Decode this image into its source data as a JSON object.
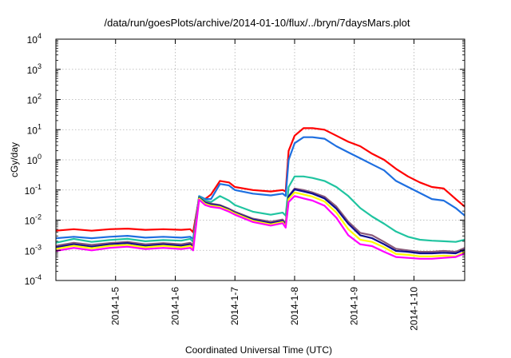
{
  "chart_data": {
    "type": "line",
    "title": "/data/run/goesPlots/archive/2014-01-10/flux/../bryn/7daysMars.plot",
    "xlabel": "Coordinated Universal Time (UTC)",
    "ylabel": "cGy/day",
    "yscale": "log",
    "ylim_exponent": [
      -4,
      4
    ],
    "y_ticks": [
      {
        "base": "10",
        "exp": "-4"
      },
      {
        "base": "10",
        "exp": "-3"
      },
      {
        "base": "10",
        "exp": "-2"
      },
      {
        "base": "10",
        "exp": "-1"
      },
      {
        "base": "10",
        "exp": "0"
      },
      {
        "base": "10",
        "exp": "1"
      },
      {
        "base": "10",
        "exp": "2"
      },
      {
        "base": "10",
        "exp": "3"
      },
      {
        "base": "10",
        "exp": "4"
      }
    ],
    "xlim_days": [
      0,
      6.85
    ],
    "x_ticks": [
      {
        "label": "2014-1-5",
        "day": 1
      },
      {
        "label": "2014-1-6",
        "day": 2
      },
      {
        "label": "2014-1-7",
        "day": 3
      },
      {
        "label": "2014-1-8",
        "day": 4
      },
      {
        "label": "2014-1-9",
        "day": 5
      },
      {
        "label": "2014-1-10",
        "day": 6
      }
    ],
    "grid": true,
    "series": [
      {
        "color": "#ff0000",
        "points": [
          [
            0,
            -2.35
          ],
          [
            0.3,
            -2.3
          ],
          [
            0.6,
            -2.35
          ],
          [
            0.9,
            -2.3
          ],
          [
            1.2,
            -2.28
          ],
          [
            1.5,
            -2.32
          ],
          [
            1.8,
            -2.3
          ],
          [
            2.1,
            -2.32
          ],
          [
            2.25,
            -2.3
          ],
          [
            2.3,
            -2.4
          ],
          [
            2.4,
            -1.25
          ],
          [
            2.5,
            -1.3
          ],
          [
            2.6,
            -1.15
          ],
          [
            2.75,
            -0.7
          ],
          [
            2.9,
            -0.75
          ],
          [
            3.0,
            -0.9
          ],
          [
            3.3,
            -1.0
          ],
          [
            3.6,
            -1.05
          ],
          [
            3.8,
            -1.0
          ],
          [
            3.85,
            -1.05
          ],
          [
            3.9,
            0.3
          ],
          [
            4.0,
            0.8
          ],
          [
            4.15,
            1.05
          ],
          [
            4.3,
            1.05
          ],
          [
            4.5,
            1.0
          ],
          [
            4.7,
            0.8
          ],
          [
            4.9,
            0.6
          ],
          [
            5.1,
            0.45
          ],
          [
            5.3,
            0.2
          ],
          [
            5.5,
            0.0
          ],
          [
            5.7,
            -0.3
          ],
          [
            5.9,
            -0.55
          ],
          [
            6.1,
            -0.75
          ],
          [
            6.3,
            -0.9
          ],
          [
            6.5,
            -0.95
          ],
          [
            6.7,
            -1.3
          ],
          [
            6.85,
            -1.55
          ]
        ]
      },
      {
        "color": "#1e6fe0",
        "points": [
          [
            0,
            -2.6
          ],
          [
            0.3,
            -2.55
          ],
          [
            0.6,
            -2.6
          ],
          [
            0.9,
            -2.55
          ],
          [
            1.2,
            -2.52
          ],
          [
            1.5,
            -2.58
          ],
          [
            1.8,
            -2.55
          ],
          [
            2.1,
            -2.58
          ],
          [
            2.25,
            -2.55
          ],
          [
            2.3,
            -2.62
          ],
          [
            2.4,
            -1.2
          ],
          [
            2.5,
            -1.3
          ],
          [
            2.6,
            -1.3
          ],
          [
            2.75,
            -0.8
          ],
          [
            2.9,
            -0.85
          ],
          [
            3.0,
            -1.0
          ],
          [
            3.3,
            -1.12
          ],
          [
            3.6,
            -1.18
          ],
          [
            3.8,
            -1.12
          ],
          [
            3.85,
            -1.2
          ],
          [
            3.9,
            0.0
          ],
          [
            4.0,
            0.55
          ],
          [
            4.15,
            0.75
          ],
          [
            4.3,
            0.75
          ],
          [
            4.5,
            0.7
          ],
          [
            4.7,
            0.45
          ],
          [
            4.9,
            0.25
          ],
          [
            5.1,
            0.05
          ],
          [
            5.3,
            -0.15
          ],
          [
            5.5,
            -0.35
          ],
          [
            5.7,
            -0.7
          ],
          [
            5.9,
            -0.9
          ],
          [
            6.1,
            -1.1
          ],
          [
            6.3,
            -1.3
          ],
          [
            6.5,
            -1.35
          ],
          [
            6.7,
            -1.6
          ],
          [
            6.85,
            -1.85
          ]
        ]
      },
      {
        "color": "#20c4a0",
        "points": [
          [
            0,
            -2.75
          ],
          [
            0.3,
            -2.62
          ],
          [
            0.6,
            -2.72
          ],
          [
            0.9,
            -2.66
          ],
          [
            1.2,
            -2.62
          ],
          [
            1.5,
            -2.7
          ],
          [
            1.8,
            -2.66
          ],
          [
            2.1,
            -2.68
          ],
          [
            2.25,
            -2.62
          ],
          [
            2.3,
            -2.72
          ],
          [
            2.4,
            -1.22
          ],
          [
            2.5,
            -1.35
          ],
          [
            2.6,
            -1.4
          ],
          [
            2.75,
            -1.2
          ],
          [
            2.9,
            -1.35
          ],
          [
            3.0,
            -1.5
          ],
          [
            3.3,
            -1.72
          ],
          [
            3.6,
            -1.82
          ],
          [
            3.8,
            -1.75
          ],
          [
            3.85,
            -1.85
          ],
          [
            3.9,
            -0.9
          ],
          [
            4.0,
            -0.55
          ],
          [
            4.15,
            -0.55
          ],
          [
            4.3,
            -0.6
          ],
          [
            4.5,
            -0.7
          ],
          [
            4.7,
            -0.9
          ],
          [
            4.9,
            -1.2
          ],
          [
            5.1,
            -1.6
          ],
          [
            5.3,
            -1.88
          ],
          [
            5.5,
            -2.12
          ],
          [
            5.7,
            -2.38
          ],
          [
            5.9,
            -2.55
          ],
          [
            6.1,
            -2.65
          ],
          [
            6.3,
            -2.68
          ],
          [
            6.5,
            -2.7
          ],
          [
            6.7,
            -2.72
          ],
          [
            6.85,
            -2.65
          ]
        ]
      },
      {
        "color": "#8a5a7a",
        "points": [
          [
            0,
            -2.85
          ],
          [
            0.3,
            -2.75
          ],
          [
            0.6,
            -2.82
          ],
          [
            0.9,
            -2.76
          ],
          [
            1.2,
            -2.72
          ],
          [
            1.5,
            -2.8
          ],
          [
            1.8,
            -2.76
          ],
          [
            2.1,
            -2.8
          ],
          [
            2.25,
            -2.75
          ],
          [
            2.3,
            -2.82
          ],
          [
            2.4,
            -1.25
          ],
          [
            2.5,
            -1.4
          ],
          [
            2.6,
            -1.45
          ],
          [
            2.75,
            -1.5
          ],
          [
            2.9,
            -1.62
          ],
          [
            3.0,
            -1.72
          ],
          [
            3.3,
            -1.95
          ],
          [
            3.6,
            -2.05
          ],
          [
            3.8,
            -1.98
          ],
          [
            3.85,
            -2.1
          ],
          [
            3.9,
            -1.2
          ],
          [
            4.0,
            -0.95
          ],
          [
            4.15,
            -1.0
          ],
          [
            4.3,
            -1.08
          ],
          [
            4.5,
            -1.22
          ],
          [
            4.7,
            -1.55
          ],
          [
            4.9,
            -2.05
          ],
          [
            5.1,
            -2.42
          ],
          [
            5.3,
            -2.5
          ],
          [
            5.5,
            -2.72
          ],
          [
            5.7,
            -2.95
          ],
          [
            5.9,
            -3.0
          ],
          [
            6.1,
            -3.05
          ],
          [
            6.3,
            -3.05
          ],
          [
            6.5,
            -3.02
          ],
          [
            6.7,
            -3.05
          ],
          [
            6.85,
            -2.92
          ]
        ]
      },
      {
        "color": "#101090",
        "points": [
          [
            0,
            -2.9
          ],
          [
            0.3,
            -2.8
          ],
          [
            0.6,
            -2.88
          ],
          [
            0.9,
            -2.8
          ],
          [
            1.2,
            -2.76
          ],
          [
            1.5,
            -2.85
          ],
          [
            1.8,
            -2.8
          ],
          [
            2.1,
            -2.85
          ],
          [
            2.25,
            -2.8
          ],
          [
            2.3,
            -2.88
          ],
          [
            2.4,
            -1.25
          ],
          [
            2.5,
            -1.42
          ],
          [
            2.6,
            -1.48
          ],
          [
            2.75,
            -1.52
          ],
          [
            2.9,
            -1.65
          ],
          [
            3.0,
            -1.75
          ],
          [
            3.3,
            -1.98
          ],
          [
            3.6,
            -2.1
          ],
          [
            3.8,
            -2.02
          ],
          [
            3.85,
            -2.15
          ],
          [
            3.9,
            -1.22
          ],
          [
            4.0,
            -0.98
          ],
          [
            4.15,
            -1.05
          ],
          [
            4.3,
            -1.12
          ],
          [
            4.5,
            -1.28
          ],
          [
            4.7,
            -1.62
          ],
          [
            4.9,
            -2.12
          ],
          [
            5.1,
            -2.5
          ],
          [
            5.3,
            -2.6
          ],
          [
            5.5,
            -2.8
          ],
          [
            5.7,
            -3.02
          ],
          [
            5.9,
            -3.05
          ],
          [
            6.1,
            -3.1
          ],
          [
            6.3,
            -3.1
          ],
          [
            6.5,
            -3.08
          ],
          [
            6.7,
            -3.1
          ],
          [
            6.85,
            -2.98
          ]
        ]
      },
      {
        "color": "#ffff00",
        "points": [
          [
            0,
            -2.95
          ],
          [
            0.3,
            -2.85
          ],
          [
            0.6,
            -2.93
          ],
          [
            0.9,
            -2.85
          ],
          [
            1.2,
            -2.82
          ],
          [
            1.5,
            -2.9
          ],
          [
            1.8,
            -2.85
          ],
          [
            2.1,
            -2.9
          ],
          [
            2.25,
            -2.85
          ],
          [
            2.3,
            -2.93
          ],
          [
            2.4,
            -1.28
          ],
          [
            2.5,
            -1.46
          ],
          [
            2.6,
            -1.52
          ],
          [
            2.75,
            -1.56
          ],
          [
            2.9,
            -1.68
          ],
          [
            3.0,
            -1.78
          ],
          [
            3.3,
            -2.02
          ],
          [
            3.6,
            -2.14
          ],
          [
            3.8,
            -2.06
          ],
          [
            3.85,
            -2.2
          ],
          [
            3.9,
            -1.3
          ],
          [
            4.0,
            -1.08
          ],
          [
            4.15,
            -1.15
          ],
          [
            4.3,
            -1.22
          ],
          [
            4.5,
            -1.38
          ],
          [
            4.7,
            -1.75
          ],
          [
            4.9,
            -2.3
          ],
          [
            5.1,
            -2.65
          ],
          [
            5.3,
            -2.72
          ],
          [
            5.5,
            -2.9
          ],
          [
            5.7,
            -3.12
          ],
          [
            5.9,
            -3.15
          ],
          [
            6.1,
            -3.2
          ],
          [
            6.3,
            -3.2
          ],
          [
            6.5,
            -3.18
          ],
          [
            6.7,
            -3.2
          ],
          [
            6.85,
            -3.05
          ]
        ]
      },
      {
        "color": "#ff00ff",
        "points": [
          [
            0,
            -3.02
          ],
          [
            0.3,
            -2.92
          ],
          [
            0.6,
            -3.0
          ],
          [
            0.9,
            -2.92
          ],
          [
            1.2,
            -2.88
          ],
          [
            1.5,
            -2.96
          ],
          [
            1.8,
            -2.92
          ],
          [
            2.1,
            -2.96
          ],
          [
            2.25,
            -2.92
          ],
          [
            2.3,
            -3.0
          ],
          [
            2.4,
            -1.32
          ],
          [
            2.5,
            -1.5
          ],
          [
            2.6,
            -1.56
          ],
          [
            2.75,
            -1.6
          ],
          [
            2.9,
            -1.72
          ],
          [
            3.0,
            -1.82
          ],
          [
            3.3,
            -2.06
          ],
          [
            3.6,
            -2.18
          ],
          [
            3.8,
            -2.1
          ],
          [
            3.85,
            -2.25
          ],
          [
            3.9,
            -1.4
          ],
          [
            4.0,
            -1.2
          ],
          [
            4.15,
            -1.28
          ],
          [
            4.3,
            -1.35
          ],
          [
            4.5,
            -1.52
          ],
          [
            4.7,
            -1.92
          ],
          [
            4.9,
            -2.5
          ],
          [
            5.1,
            -2.8
          ],
          [
            5.3,
            -2.86
          ],
          [
            5.5,
            -3.05
          ],
          [
            5.7,
            -3.22
          ],
          [
            5.9,
            -3.25
          ],
          [
            6.1,
            -3.28
          ],
          [
            6.3,
            -3.28
          ],
          [
            6.5,
            -3.25
          ],
          [
            6.7,
            -3.22
          ],
          [
            6.85,
            -3.1
          ]
        ]
      }
    ]
  }
}
